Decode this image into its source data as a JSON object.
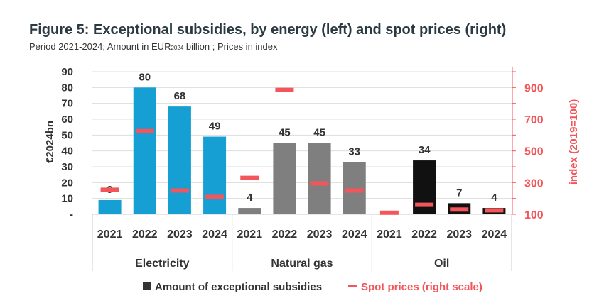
{
  "title": "Figure 5: Exceptional subsidies, by energy (left) and spot prices (right)",
  "subtitle": {
    "before": "Period 2021-2024; Amount in EUR",
    "sub": "2024",
    "after": " billion ; Prices in index"
  },
  "chart_data": {
    "type": "bar",
    "groups": [
      "Electricity",
      "Natural gas",
      "Oil"
    ],
    "categories": [
      "2021",
      "2022",
      "2023",
      "2024"
    ],
    "ylabel": "€2024bn",
    "y2label": "index (2019=100)",
    "ylim": [
      0,
      90
    ],
    "y2lim": [
      100,
      1000
    ],
    "yticks": [
      "-",
      "10",
      "20",
      "30",
      "40",
      "50",
      "60",
      "70",
      "80",
      "90"
    ],
    "y2ticks": [
      "100",
      "300",
      "500",
      "700",
      "900"
    ],
    "grid": true,
    "legend_position": "bottom",
    "series": [
      {
        "name": "Amount of exceptional subsidies",
        "axis": "left",
        "kind": "bar",
        "values": [
          [
            9,
            80,
            68,
            49
          ],
          [
            4,
            45,
            45,
            33
          ],
          [
            0,
            34,
            7,
            4
          ]
        ],
        "labels": [
          [
            "9",
            "80",
            "68",
            "49"
          ],
          [
            "4",
            "45",
            "45",
            "33"
          ],
          [
            "",
            "34",
            "7",
            "4"
          ]
        ]
      },
      {
        "name": "Spot prices (right scale)",
        "axis": "right",
        "kind": "marker",
        "values": [
          [
            255,
            625,
            250,
            210
          ],
          [
            330,
            885,
            295,
            250
          ],
          [
            110,
            160,
            130,
            125
          ]
        ]
      }
    ],
    "colors": {
      "Electricity": "#159fd3",
      "Natural gas": "#7f7f7f",
      "Oil": "#111111",
      "spot": "#f4555a",
      "legend_bar": "#333333",
      "axis_right": "#f4555a",
      "grid": "#dddddd"
    }
  }
}
